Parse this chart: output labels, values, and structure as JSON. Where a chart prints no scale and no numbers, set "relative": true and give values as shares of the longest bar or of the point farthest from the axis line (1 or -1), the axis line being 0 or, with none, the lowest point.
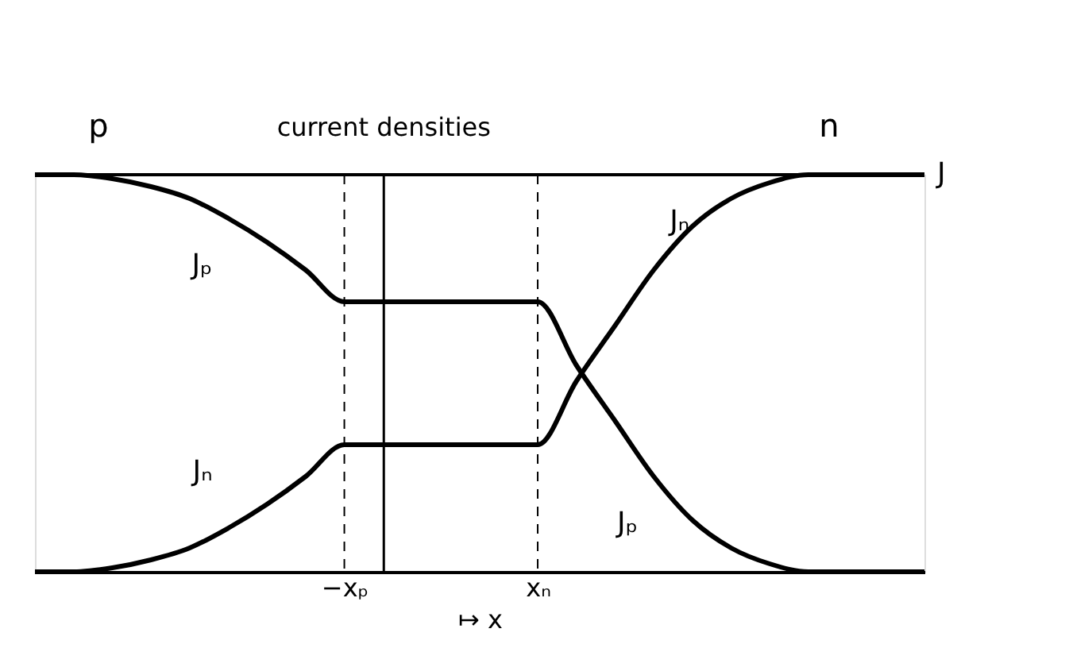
{
  "chart_data": {
    "type": "line",
    "relative": true,
    "ylabel": "current densities",
    "xlabel": "↦ x",
    "categories": [
      null,
      null,
      null,
      null,
      null,
      null,
      null,
      null,
      "−xₚ",
      null,
      null,
      null,
      null,
      "xₙ",
      null,
      null,
      null,
      null,
      null,
      null,
      null,
      null,
      null,
      null
    ],
    "series": [
      {
        "name": "Jₚ",
        "color": "#000000",
        "values": [
          1,
          1,
          0.99,
          0.97,
          0.94,
          0.89,
          0.83,
          0.76,
          0.68,
          0.68,
          0.68,
          0.68,
          0.68,
          0.68,
          0.52,
          0.38,
          0.24,
          0.13,
          0.06,
          0.02,
          0,
          0,
          0,
          0
        ]
      },
      {
        "name": "Jₙ",
        "color": "#000000",
        "values": [
          0,
          0,
          0.01,
          0.03,
          0.06,
          0.11,
          0.17,
          0.24,
          0.32,
          0.32,
          0.32,
          0.32,
          0.32,
          0.32,
          0.48,
          0.62,
          0.76,
          0.87,
          0.94,
          0.98,
          1,
          1,
          1,
          1
        ]
      }
    ],
    "ref_lines": [
      {
        "axis": "y",
        "value": 1,
        "label": "J",
        "color": "#000000"
      },
      {
        "axis": "x",
        "value": "−xₚ",
        "color": "#000000",
        "line_style": "dashed"
      },
      {
        "axis": "x",
        "value": "xₙ",
        "color": "#000000",
        "line_style": "dashed"
      }
    ],
    "annotations": [
      "p",
      "n"
    ],
    "grid": false,
    "marker": "none",
    "line_style": "solid"
  }
}
